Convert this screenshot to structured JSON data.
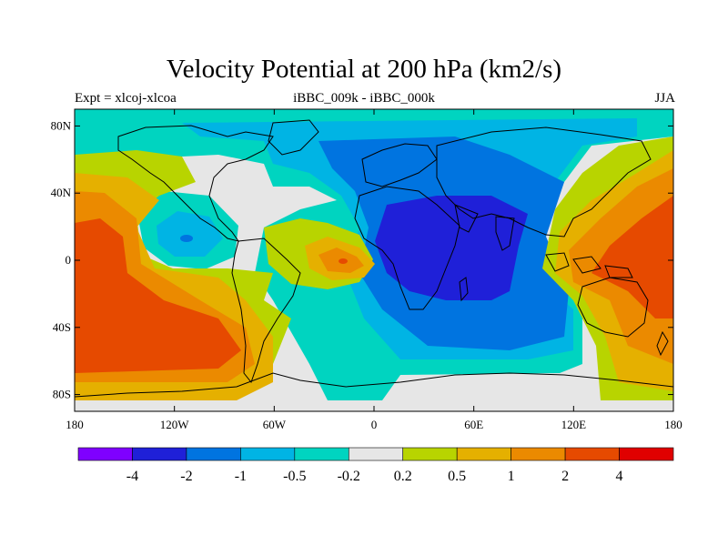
{
  "title": "Velocity Potential at 200 hPa (km2/s)",
  "left_label": "Expt = xlcoj-xlcoa",
  "center_label": "iBBC_009k - iBBC_000k",
  "right_label": "JJA",
  "map": {
    "lon_range": [
      -180,
      180
    ],
    "lat_range": [
      -90,
      90
    ],
    "x_ticks": [
      "180",
      "120W",
      "60W",
      "0",
      "60E",
      "120E",
      "180"
    ],
    "y_ticks": [
      "80N",
      "40N",
      "0",
      "40S",
      "80S"
    ]
  },
  "colorbar": {
    "colors": [
      "#7f00ff",
      "#1f20d8",
      "#0074e0",
      "#00b4e4",
      "#00d4c0",
      "#e6e6e6",
      "#b8d400",
      "#e5b000",
      "#eb8a00",
      "#e64a00",
      "#e00000"
    ],
    "labels": [
      "-4",
      "-2",
      "-1",
      "-0.5",
      "-0.2",
      "0.2",
      "0.5",
      "1",
      "2",
      "4"
    ]
  }
}
